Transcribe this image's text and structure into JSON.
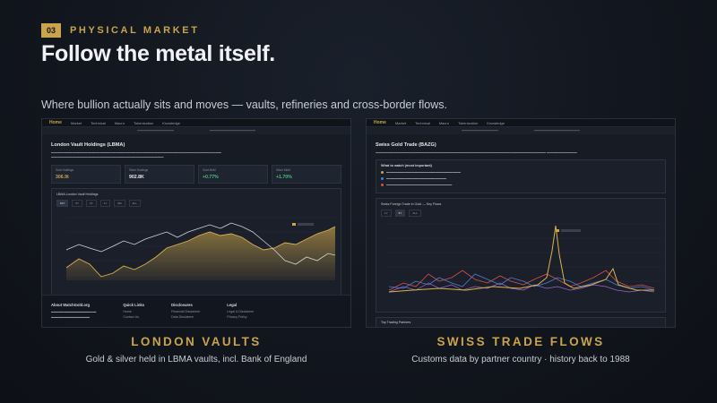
{
  "header": {
    "section_number": "03",
    "section_label": "PHYSICAL MARKET",
    "title": "Follow the metal itself.",
    "subtitle": "Where bullion actually sits and moves — vaults, refineries and cross-border flows."
  },
  "panels": {
    "left": {
      "nav": {
        "home": "Home",
        "items": [
          "Market",
          "Technical",
          "Macro",
          "Tokenization",
          "Knowledge"
        ]
      },
      "page_title": "London Vault Holdings (LBMA)",
      "stats": [
        {
          "label": "Gold Holdings",
          "value": "306.9t",
          "color": "#c9a44a"
        },
        {
          "label": "Silver Holdings",
          "value": "902.8K",
          "color": "#e8e9ec"
        },
        {
          "label": "Gold MoM",
          "value": "+0.77%",
          "color": "#4fbf7a"
        },
        {
          "label": "Silver MoM",
          "value": "+1.70%",
          "color": "#4fbf7a"
        }
      ],
      "chart_title": "LBMA London Vault Holdings",
      "ranges": [
        "10Y",
        "5Y",
        "3Y",
        "1Y",
        "6M",
        "ALL"
      ],
      "footer": {
        "about": "About WatchGold.org",
        "quick_links": {
          "title": "Quick Links",
          "items": [
            "Home",
            "Contact Us",
            "Knowledge"
          ]
        },
        "disclosures": {
          "title": "Disclosures",
          "items": [
            "Financial Disclaimer",
            "Data Disclaimer",
            "AI Disclaimer"
          ]
        },
        "legal": {
          "title": "Legal",
          "items": [
            "Legal & Disclaimer",
            "Privacy Policy",
            "Terms of Service"
          ]
        }
      }
    },
    "right": {
      "nav": {
        "home": "Home",
        "items": [
          "Market",
          "Technical",
          "Macro",
          "Tokenization",
          "Knowledge"
        ]
      },
      "page_title": "Swiss Gold Trade (BAZG)",
      "watch_title": "What to watch (most important)",
      "chart_title": "Swiss Foreign Trade in Gold — Key Flows",
      "ranges": [
        "1Y",
        "5Y",
        "ALL"
      ],
      "top_partners": "Top Trading Partners"
    }
  },
  "captions": {
    "left": {
      "title": "LONDON VAULTS",
      "subtitle": "Gold & silver held in LBMA vaults, incl. Bank of England"
    },
    "right": {
      "title": "SWISS TRADE FLOWS",
      "subtitle": "Customs data by partner country · history back to 1988"
    }
  },
  "colors": {
    "accent": "#c9a44a",
    "positive": "#4fbf7a"
  }
}
